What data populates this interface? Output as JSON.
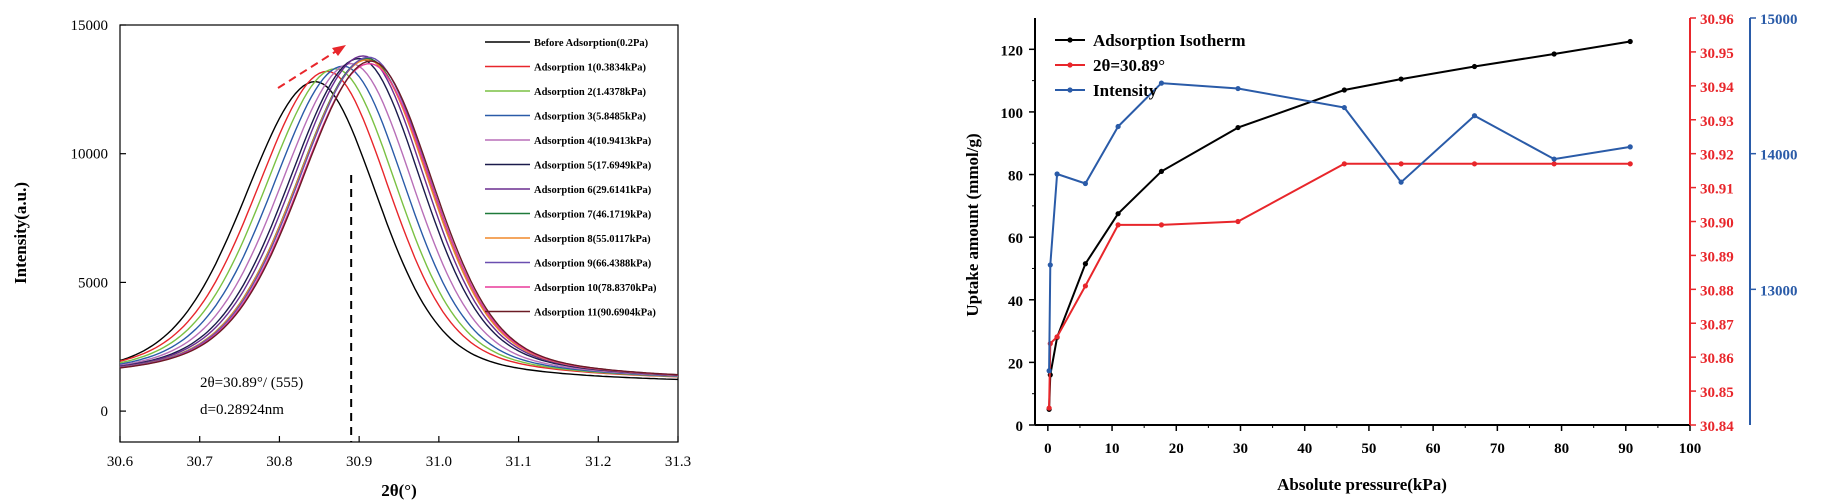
{
  "colors": {
    "black": "#000000",
    "red": "#e8262b",
    "blue": "#2a5ba8",
    "before": "#000000",
    "ads1": "#e8262b",
    "ads2": "#7ac143",
    "ads3": "#2a5ba8",
    "ads4": "#b86fb8",
    "ads5": "#1b1b4b",
    "ads6": "#6a2d8f",
    "ads7": "#1f7a3a",
    "ads8": "#f0882a",
    "ads9": "#6a4fb0",
    "ads10": "#e83a9a",
    "ads11": "#6b1b24"
  },
  "chart_data": [
    {
      "type": "line",
      "title": "",
      "xlabel": "2θ(°)",
      "ylabel": "Intensity(a.u.)",
      "xlim": [
        30.6,
        31.3
      ],
      "ylim": [
        -1200,
        15000
      ],
      "xticks": [
        "30.6",
        "30.7",
        "30.8",
        "30.9",
        "31.0",
        "31.1",
        "31.2",
        "31.3"
      ],
      "yticks": [
        "0",
        "5000",
        "10000",
        "15000"
      ],
      "legend_position": "top-right",
      "annotation_line1": "2θ=30.89°/ (555)",
      "annotation_line2": "d=0.28924nm",
      "reference_line_x": 30.89,
      "series": [
        {
          "name": "Before Adsorption(0.2Pa)",
          "color_key": "before",
          "peak": 30.845,
          "height": 12800,
          "shift": 0
        },
        {
          "name": "Adsorption 1(0.3834kPa)",
          "color_key": "ads1",
          "peak": 30.86,
          "height": 13200,
          "shift": 0.015
        },
        {
          "name": "Adsorption 2(1.4378kPa)",
          "color_key": "ads2",
          "peak": 30.87,
          "height": 13300,
          "shift": 0.025
        },
        {
          "name": "Adsorption 3(5.8485kPa)",
          "color_key": "ads3",
          "peak": 30.88,
          "height": 13400,
          "shift": 0.035
        },
        {
          "name": "Adsorption 4(10.9413kPa)",
          "color_key": "ads4",
          "peak": 30.89,
          "height": 13500,
          "shift": 0.045
        },
        {
          "name": "Adsorption 5(17.6949kPa)",
          "color_key": "ads5",
          "peak": 30.9,
          "height": 13700,
          "shift": 0.055
        },
        {
          "name": "Adsorption 6(29.6141kPa)",
          "color_key": "ads6",
          "peak": 30.905,
          "height": 13800,
          "shift": 0.06
        },
        {
          "name": "Adsorption 7(46.1719kPa)",
          "color_key": "ads7",
          "peak": 30.91,
          "height": 13700,
          "shift": 0.065
        },
        {
          "name": "Adsorption 8(55.0117kPa)",
          "color_key": "ads8",
          "peak": 30.91,
          "height": 13650,
          "shift": 0.065
        },
        {
          "name": "Adsorption 9(66.4388kPa)",
          "color_key": "ads9",
          "peak": 30.912,
          "height": 13750,
          "shift": 0.067
        },
        {
          "name": "Adsorption 10(78.8370kPa)",
          "color_key": "ads10",
          "peak": 30.913,
          "height": 13500,
          "shift": 0.068
        },
        {
          "name": "Adsorption 11(90.6904kPa)",
          "color_key": "ads11",
          "peak": 30.915,
          "height": 13600,
          "shift": 0.07
        }
      ]
    },
    {
      "type": "line",
      "title": "",
      "xlabel": "Absolute pressure(kPa)",
      "ylabel": "Uptake amount (mmol/g)",
      "xlim": [
        -2,
        100
      ],
      "ylim": [
        0,
        130
      ],
      "xticks": [
        "0",
        "10",
        "20",
        "30",
        "40",
        "50",
        "60",
        "70",
        "80",
        "90",
        "100"
      ],
      "yticks": [
        "0",
        "20",
        "40",
        "60",
        "80",
        "100",
        "120"
      ],
      "y2lim": [
        30.84,
        30.96
      ],
      "y2ticks": [
        "30.84",
        "30.85",
        "30.86",
        "30.87",
        "30.88",
        "30.89",
        "30.90",
        "30.91",
        "30.92",
        "30.93",
        "30.94",
        "30.95",
        "30.96"
      ],
      "y3lim": [
        12000,
        15000
      ],
      "y3ticks": [
        "13000",
        "14000",
        "15000"
      ],
      "legend_position": "top-left",
      "series": [
        {
          "name": "Adsorption Isotherm",
          "color_key": "black",
          "axis": "left",
          "x": [
            0.2,
            0.38,
            1.44,
            5.85,
            10.94,
            17.69,
            29.61,
            46.17,
            55.01,
            66.44,
            78.84,
            90.69
          ],
          "y": [
            5,
            16,
            28,
            51.5,
            67.5,
            81,
            95,
            107,
            110.5,
            114.5,
            118.5,
            122.5
          ]
        },
        {
          "name": "2θ=30.89°",
          "color_key": "red",
          "axis": "right",
          "x": [
            0.2,
            0.38,
            1.44,
            5.85,
            10.94,
            17.69,
            29.61,
            46.17,
            55.01,
            66.44,
            78.84,
            90.69
          ],
          "y": [
            30.845,
            30.864,
            30.866,
            30.881,
            30.899,
            30.899,
            30.9,
            30.917,
            30.917,
            30.917,
            30.917,
            30.917
          ]
        },
        {
          "name": "Intensity",
          "color_key": "blue",
          "axis": "right2",
          "x": [
            0.2,
            0.38,
            1.44,
            5.85,
            10.94,
            17.69,
            29.61,
            46.17,
            55.01,
            66.44,
            78.84,
            90.69
          ],
          "y": [
            12400,
            13180,
            13850,
            13780,
            14200,
            14520,
            14480,
            14340,
            13790,
            14280,
            13960,
            14050
          ]
        }
      ]
    }
  ]
}
